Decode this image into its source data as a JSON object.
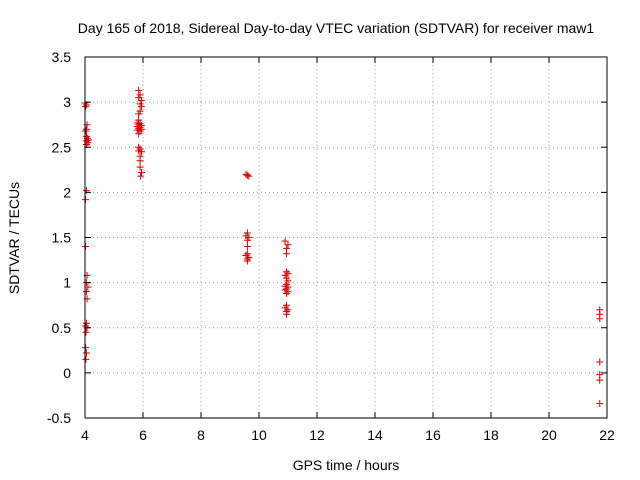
{
  "chart_data": {
    "type": "scatter",
    "title": "Day 165 of 2018, Sidereal Day-to-day VTEC variation (SDTVAR) for receiver maw1",
    "xlabel": "GPS time / hours",
    "ylabel": "SDTVAR / TECUs",
    "xlim": [
      4,
      22
    ],
    "ylim": [
      -0.5,
      3.5
    ],
    "xticks": [
      "4",
      "6",
      "8",
      "10",
      "12",
      "14",
      "16",
      "18",
      "20",
      "22"
    ],
    "yticks": [
      "-0.5",
      "0",
      "0.5",
      "1",
      "1.5",
      "2",
      "2.5",
      "3",
      "3.5"
    ],
    "grid": true,
    "legend": "none",
    "marker": "+",
    "color": "#dd0000",
    "points": [
      [
        4.0,
        2.99
      ],
      [
        4.05,
        2.97
      ],
      [
        4.02,
        2.95
      ],
      [
        4.05,
        2.7
      ],
      [
        4.02,
        2.68
      ],
      [
        4.07,
        2.75
      ],
      [
        4.05,
        2.62
      ],
      [
        4.08,
        2.6
      ],
      [
        4.05,
        2.57
      ],
      [
        4.1,
        2.55
      ],
      [
        4.05,
        2.53
      ],
      [
        4.12,
        2.58
      ],
      [
        4.05,
        2.02
      ],
      [
        4.02,
        1.92
      ],
      [
        4.02,
        1.4
      ],
      [
        4.07,
        1.08
      ],
      [
        4.05,
        1.0
      ],
      [
        4.1,
        0.95
      ],
      [
        4.05,
        0.9
      ],
      [
        4.07,
        0.82
      ],
      [
        4.05,
        0.55
      ],
      [
        4.02,
        0.52
      ],
      [
        4.07,
        0.5
      ],
      [
        4.03,
        0.45
      ],
      [
        4.02,
        0.28
      ],
      [
        4.05,
        0.22
      ],
      [
        4.03,
        0.15
      ],
      [
        5.85,
        3.13
      ],
      [
        5.9,
        3.08
      ],
      [
        5.85,
        3.05
      ],
      [
        5.95,
        3.02
      ],
      [
        5.9,
        2.98
      ],
      [
        5.95,
        2.95
      ],
      [
        5.9,
        2.9
      ],
      [
        5.85,
        2.87
      ],
      [
        5.85,
        2.8
      ],
      [
        5.8,
        2.77
      ],
      [
        5.9,
        2.76
      ],
      [
        5.85,
        2.75
      ],
      [
        5.95,
        2.74
      ],
      [
        5.8,
        2.73
      ],
      [
        5.9,
        2.72
      ],
      [
        5.85,
        2.71
      ],
      [
        5.95,
        2.7
      ],
      [
        5.8,
        2.69
      ],
      [
        5.9,
        2.68
      ],
      [
        5.85,
        2.65
      ],
      [
        5.85,
        2.5
      ],
      [
        5.9,
        2.48
      ],
      [
        5.85,
        2.46
      ],
      [
        5.95,
        2.45
      ],
      [
        5.9,
        2.4
      ],
      [
        5.9,
        2.35
      ],
      [
        5.9,
        2.28
      ],
      [
        5.95,
        2.22
      ],
      [
        5.92,
        2.18
      ],
      [
        9.55,
        2.2
      ],
      [
        9.6,
        2.19
      ],
      [
        9.65,
        2.18
      ],
      [
        9.6,
        1.55
      ],
      [
        9.55,
        1.52
      ],
      [
        9.65,
        1.5
      ],
      [
        9.6,
        1.47
      ],
      [
        9.6,
        1.4
      ],
      [
        9.6,
        1.32
      ],
      [
        9.55,
        1.3
      ],
      [
        9.65,
        1.28
      ],
      [
        9.6,
        1.26
      ],
      [
        9.6,
        1.24
      ],
      [
        10.9,
        1.46
      ],
      [
        11.0,
        1.42
      ],
      [
        10.95,
        1.38
      ],
      [
        10.95,
        1.32
      ],
      [
        10.95,
        1.12
      ],
      [
        11.0,
        1.1
      ],
      [
        10.9,
        1.08
      ],
      [
        10.95,
        1.05
      ],
      [
        11.0,
        1.02
      ],
      [
        10.95,
        0.98
      ],
      [
        10.9,
        0.96
      ],
      [
        11.0,
        0.95
      ],
      [
        10.95,
        0.93
      ],
      [
        10.9,
        0.92
      ],
      [
        11.0,
        0.9
      ],
      [
        10.95,
        0.88
      ],
      [
        10.95,
        0.75
      ],
      [
        10.9,
        0.72
      ],
      [
        11.0,
        0.7
      ],
      [
        10.95,
        0.68
      ],
      [
        10.95,
        0.65
      ],
      [
        21.75,
        0.7
      ],
      [
        21.75,
        0.65
      ],
      [
        21.75,
        0.6
      ],
      [
        21.75,
        0.12
      ],
      [
        21.75,
        -0.02
      ],
      [
        21.75,
        -0.08
      ],
      [
        21.75,
        -0.34
      ]
    ]
  }
}
